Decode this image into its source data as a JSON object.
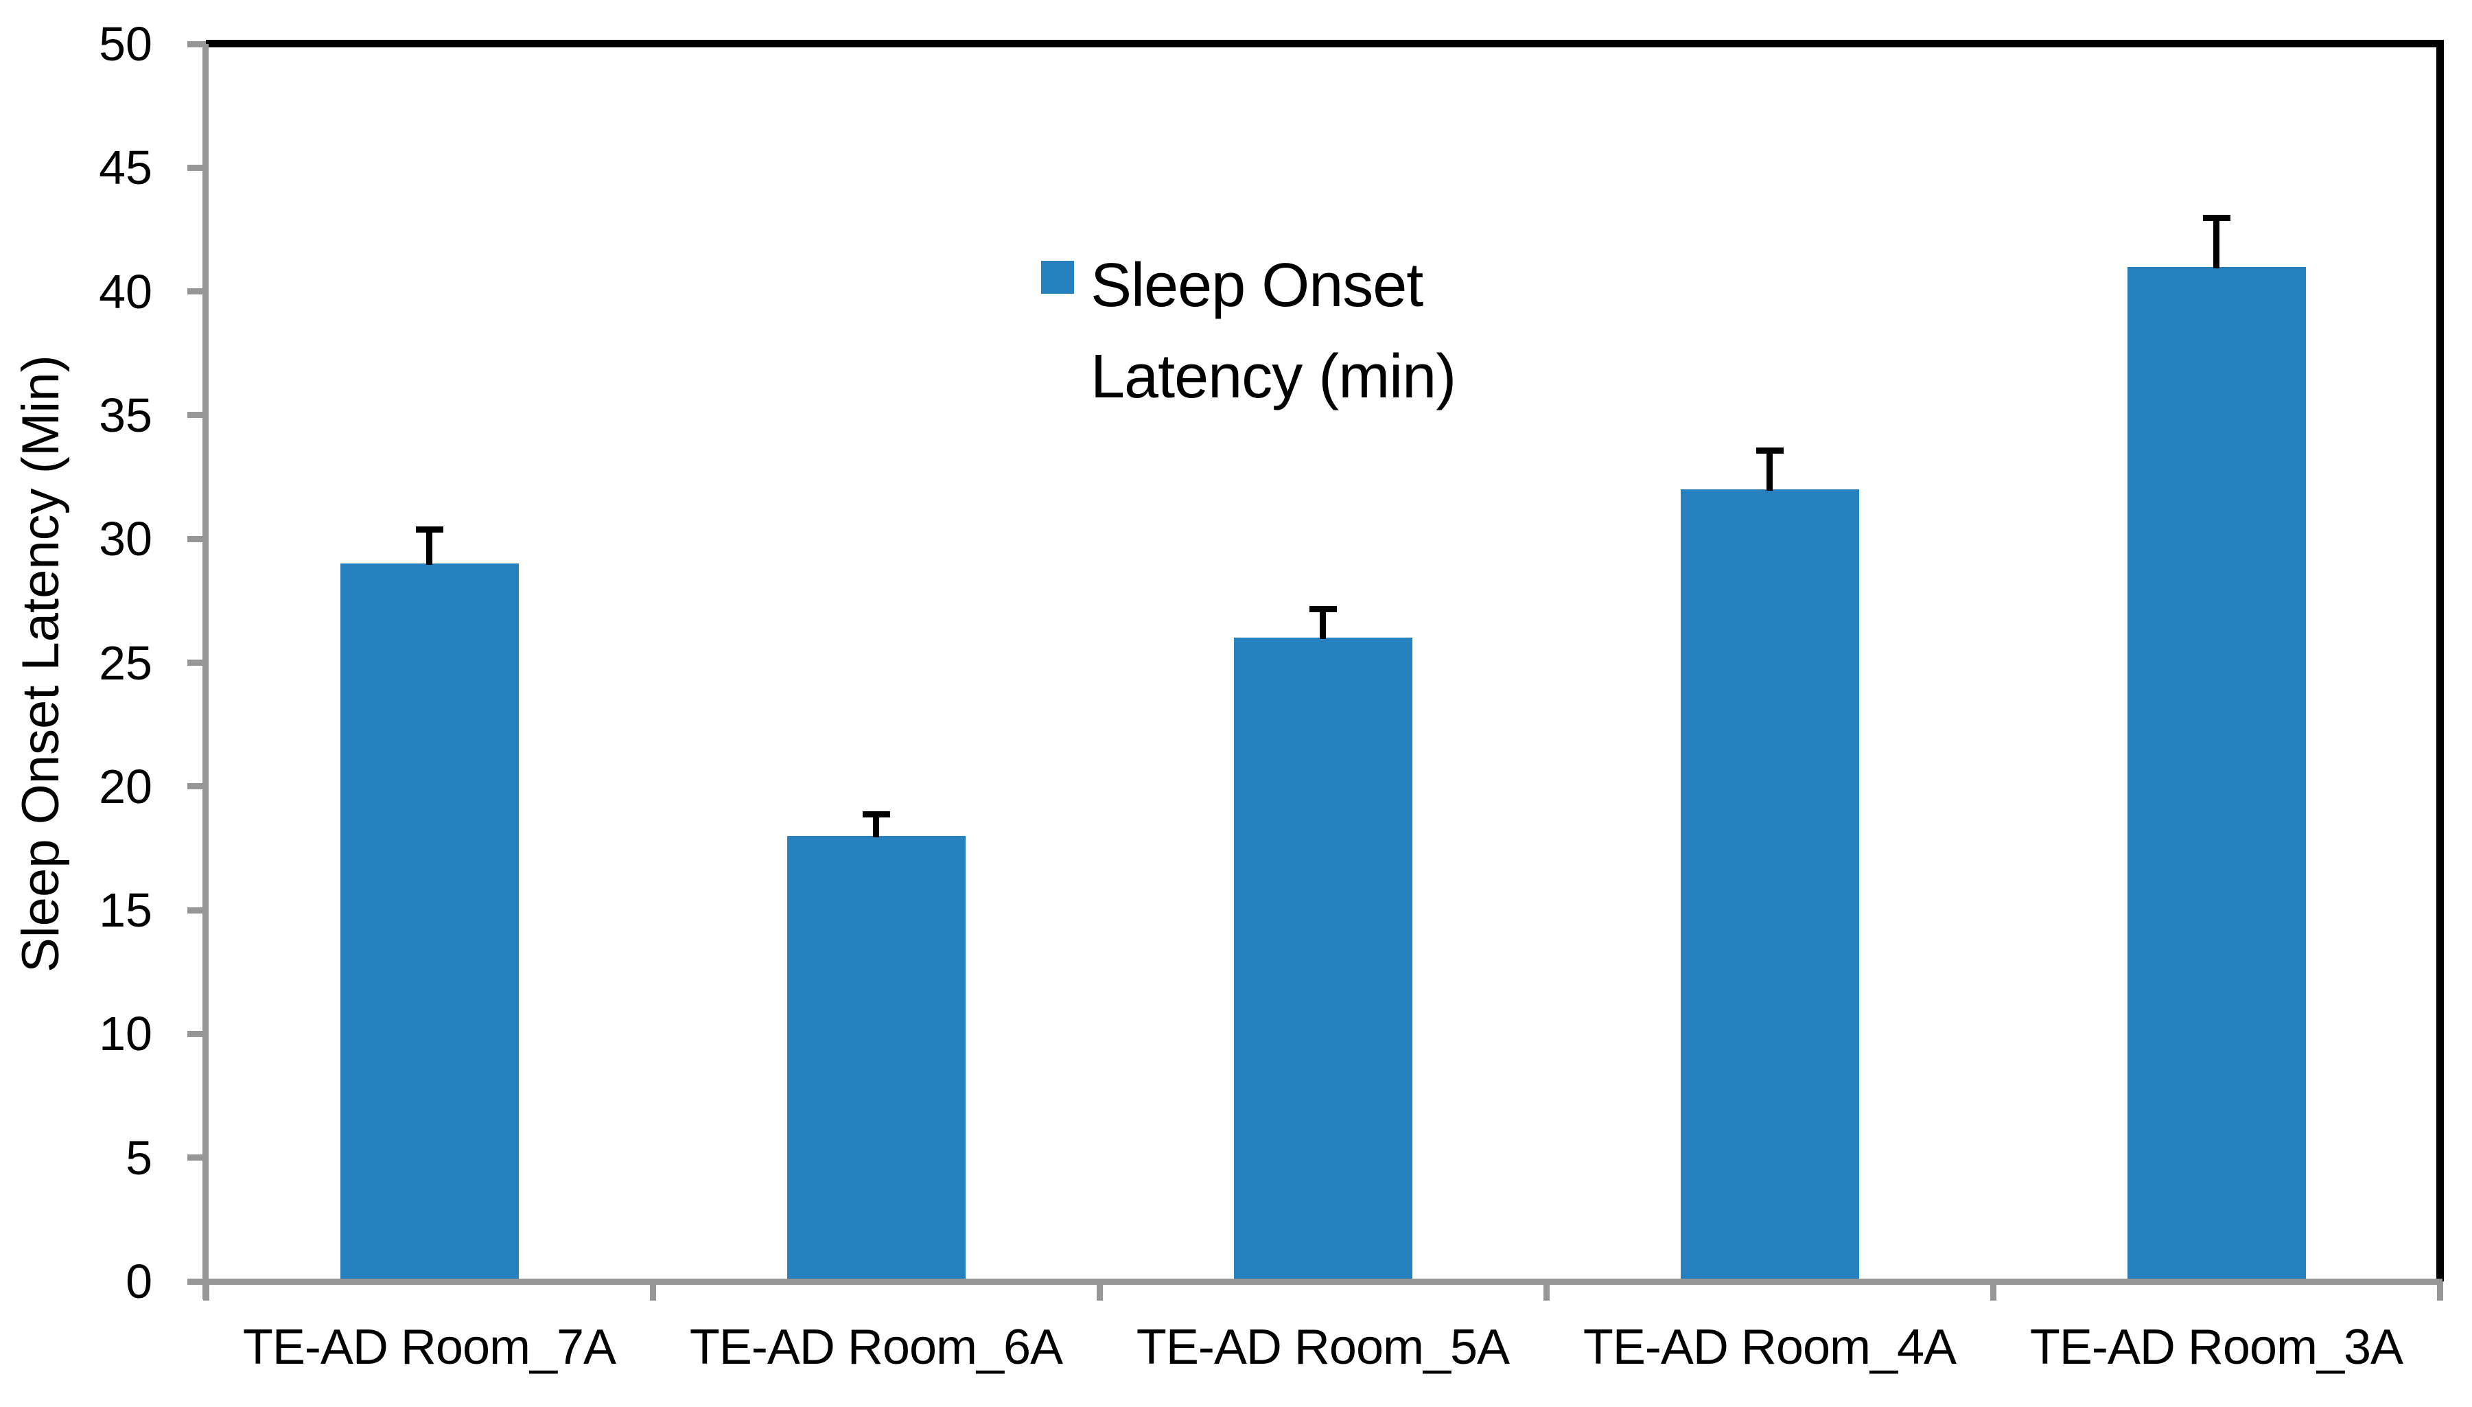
{
  "chart_data": {
    "type": "bar",
    "categories": [
      "TE-AD Room_7A",
      "TE-AD Room_6A",
      "TE-AD Room_5A",
      "TE-AD Room_4A",
      "TE-AD Room_3A"
    ],
    "values": [
      29,
      18,
      26,
      32,
      41
    ],
    "error_plus": [
      1.5,
      1.0,
      1.3,
      1.7,
      2.1
    ],
    "title": "",
    "xlabel": "",
    "ylabel": "Sleep Onset Latency (Min)",
    "ylim": [
      0,
      50
    ],
    "ytick_step": 5,
    "ytick_labels": [
      "0",
      "5",
      "10",
      "15",
      "20",
      "25",
      "30",
      "35",
      "40",
      "45",
      "50"
    ],
    "grid": false,
    "legend": {
      "position": "inside-top-center",
      "entries": [
        {
          "label": "Sleep Onset Latency (min)",
          "lines": [
            "Sleep Onset",
            "Latency (min)"
          ],
          "color": "#2681BE"
        }
      ]
    },
    "bar_color": "#2681BE",
    "error_bar_color": "#000000",
    "axis_color": "#969696",
    "frame_color": "#000000"
  }
}
